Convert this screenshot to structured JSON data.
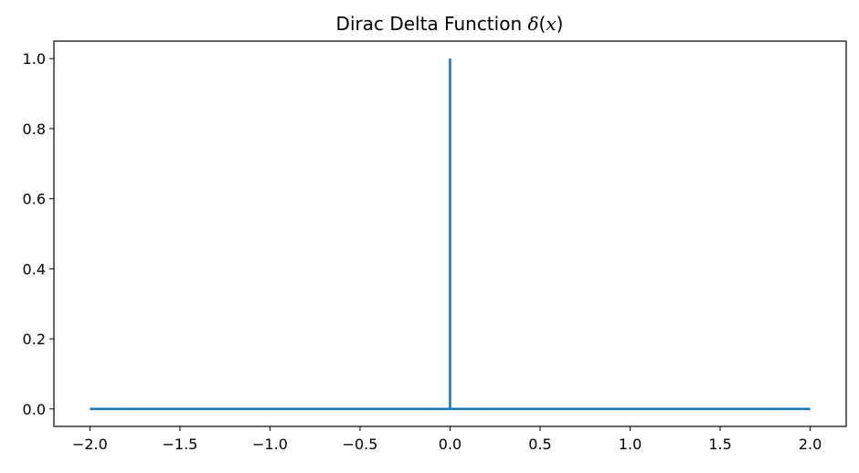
{
  "chart_data": {
    "type": "line",
    "title": {
      "prefix": "Dirac Delta Function ",
      "symbol": "δ",
      "open_paren": "(",
      "variable": "x",
      "close_paren": ")"
    },
    "xlabel": "",
    "ylabel": "",
    "xlim": [
      -2.2,
      2.2
    ],
    "ylim": [
      -0.05,
      1.05
    ],
    "x_ticks": [
      -2.0,
      -1.5,
      -1.0,
      -0.5,
      0.0,
      0.5,
      1.0,
      1.5,
      2.0
    ],
    "x_tick_labels": [
      "−2.0",
      "−1.5",
      "−1.0",
      "−0.5",
      "0.0",
      "0.5",
      "1.0",
      "1.5",
      "2.0"
    ],
    "y_ticks": [
      0.0,
      0.2,
      0.4,
      0.6,
      0.8,
      1.0
    ],
    "y_tick_labels": [
      "0.0",
      "0.2",
      "0.4",
      "0.6",
      "0.8",
      "1.0"
    ],
    "grid": false,
    "series": [
      {
        "color": "#1f77b4",
        "points": [
          {
            "x": -2.0,
            "y": 0.0
          },
          {
            "x": 0.0,
            "y": 0.0
          },
          {
            "x": 0.0,
            "y": 1.0
          },
          {
            "x": 0.0,
            "y": 0.0
          },
          {
            "x": 2.0,
            "y": 0.0
          }
        ]
      }
    ]
  }
}
